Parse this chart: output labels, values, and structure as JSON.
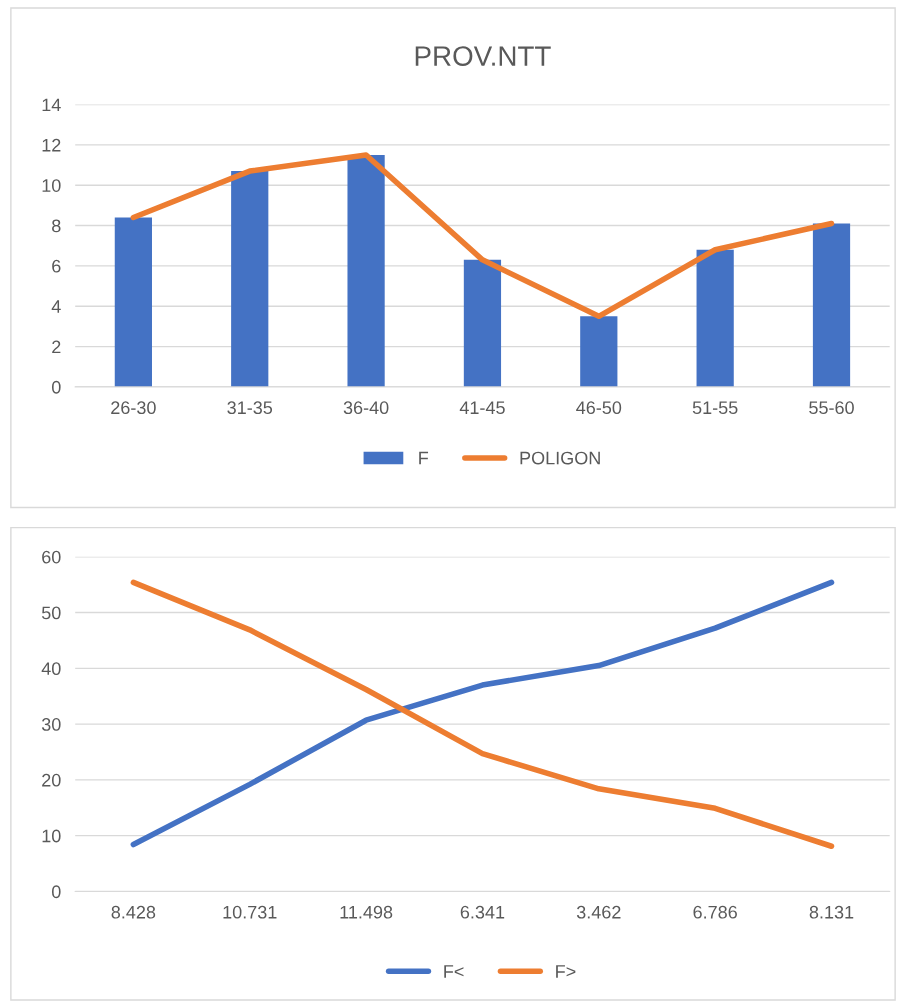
{
  "chart_data": [
    {
      "type": "bar",
      "title": "PROV.NTT",
      "categories": [
        "26-30",
        "31-35",
        "36-40",
        "41-45",
        "46-50",
        "51-55",
        "55-60"
      ],
      "series": [
        {
          "name": "F",
          "type": "bar",
          "color": "#4472c4",
          "values": [
            8.4,
            10.7,
            11.5,
            6.3,
            3.5,
            6.8,
            8.1
          ]
        },
        {
          "name": "POLIGON",
          "type": "line",
          "color": "#ed7d31",
          "values": [
            8.4,
            10.7,
            11.5,
            6.3,
            3.5,
            6.8,
            8.1
          ]
        }
      ],
      "ylim": [
        0,
        14
      ],
      "yticks": [
        0,
        2,
        4,
        6,
        8,
        10,
        12,
        14
      ],
      "grid": "y",
      "legend": "bottom",
      "marker": "none",
      "line_style": "solid"
    },
    {
      "type": "line",
      "categories": [
        "8.428",
        "10.731",
        "11.498",
        "6.341",
        "3.462",
        "6.786",
        "8.131"
      ],
      "series": [
        {
          "name": "F<",
          "color": "#4472c4",
          "values": [
            8.4,
            19.2,
            30.7,
            37.0,
            40.5,
            47.2,
            55.4
          ]
        },
        {
          "name": "F>",
          "color": "#ed7d31",
          "values": [
            55.4,
            46.9,
            36.2,
            24.7,
            18.4,
            14.9,
            8.1
          ]
        }
      ],
      "ylim": [
        0,
        60
      ],
      "yticks": [
        0,
        10,
        20,
        30,
        40,
        50,
        60
      ],
      "grid": "y",
      "legend": "bottom",
      "marker": "none",
      "line_style": "solid"
    }
  ]
}
